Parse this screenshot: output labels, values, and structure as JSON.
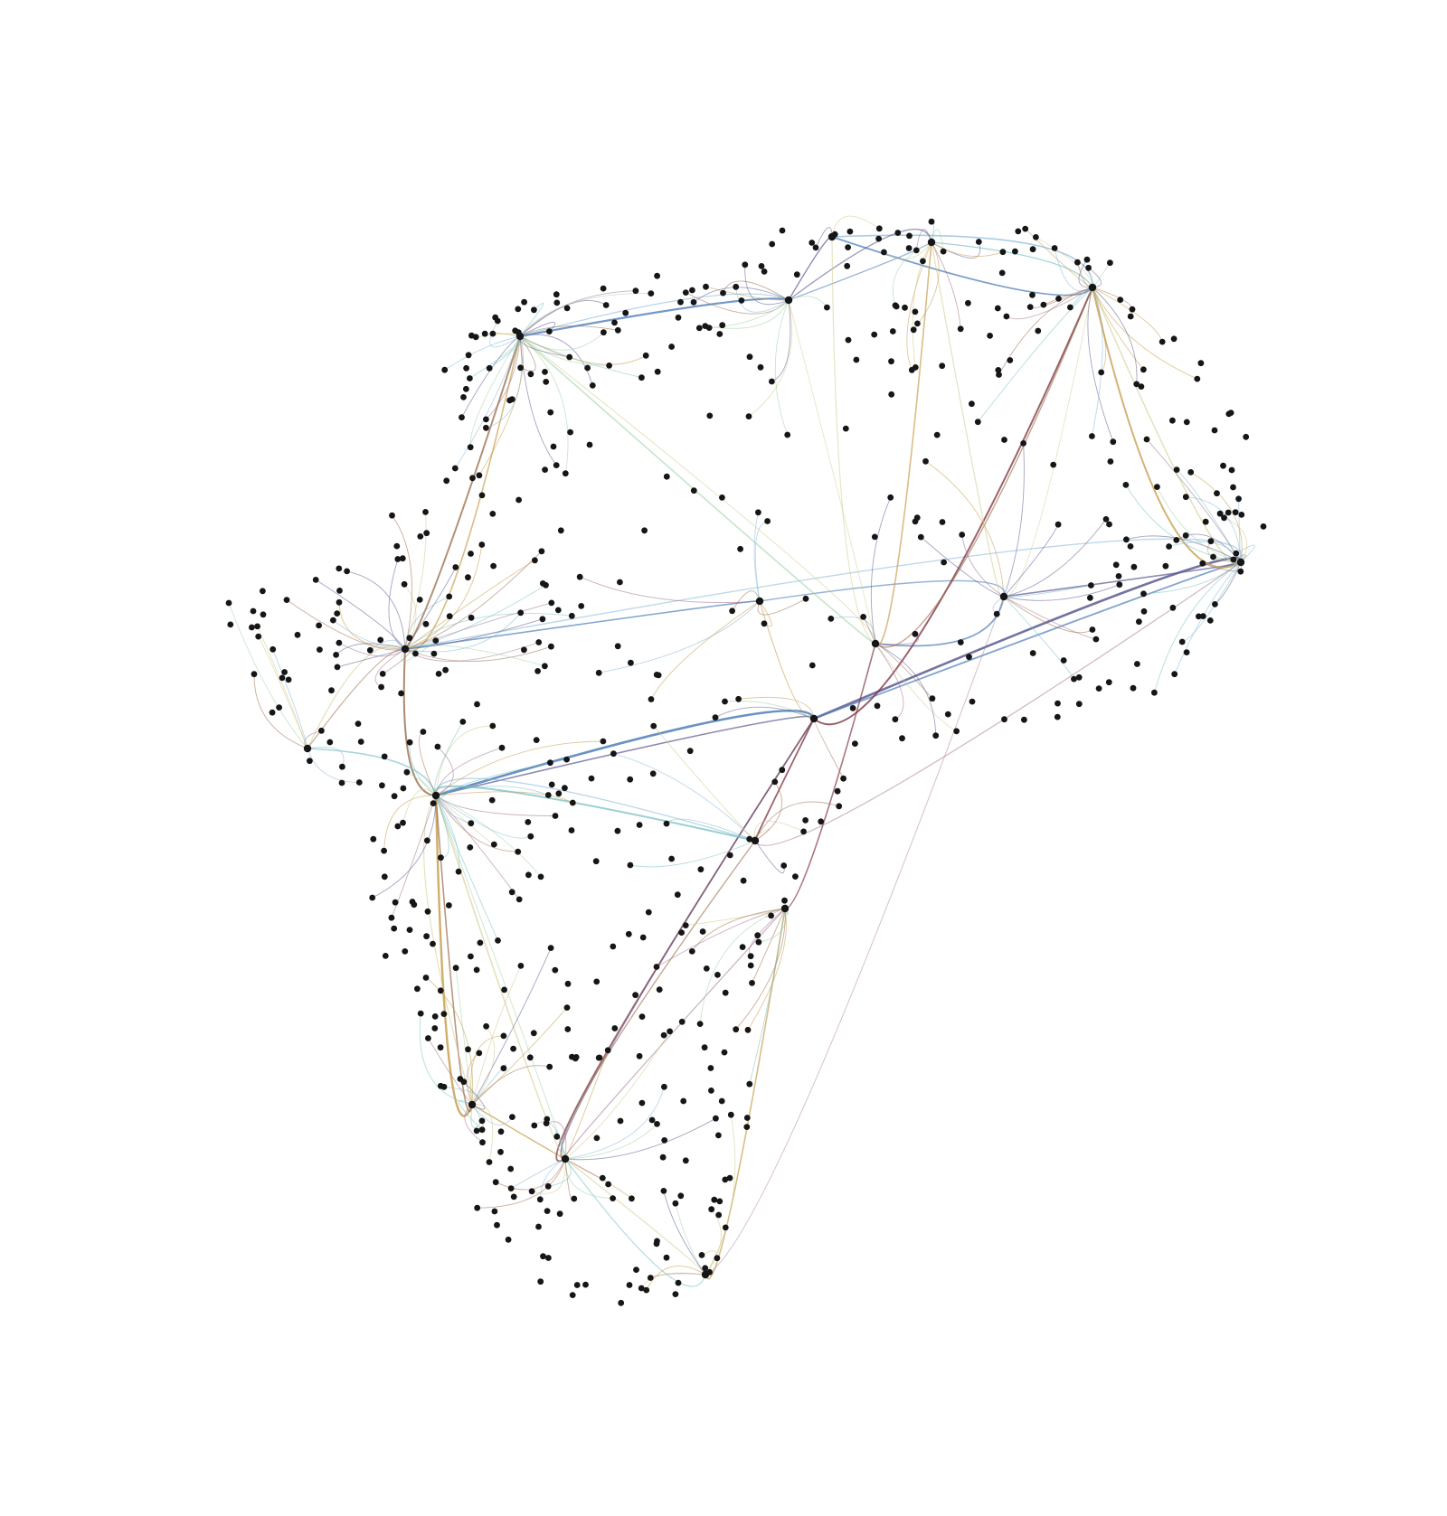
{
  "diagram": {
    "type": "edge-bundled network graph",
    "node_color": "#161616",
    "background": "#ffffff",
    "edge_palette": {
      "blue": "#4f7fba",
      "light_blue": "#86b8d8",
      "teal": "#79c0c4",
      "green": "#9fd3a6",
      "khaki": "#cfc98a",
      "gold": "#c49a45",
      "brown": "#9a6b4a",
      "maroon": "#7a2e3a",
      "mauve": "#a0708c",
      "purple": "#5b5a93"
    }
  }
}
